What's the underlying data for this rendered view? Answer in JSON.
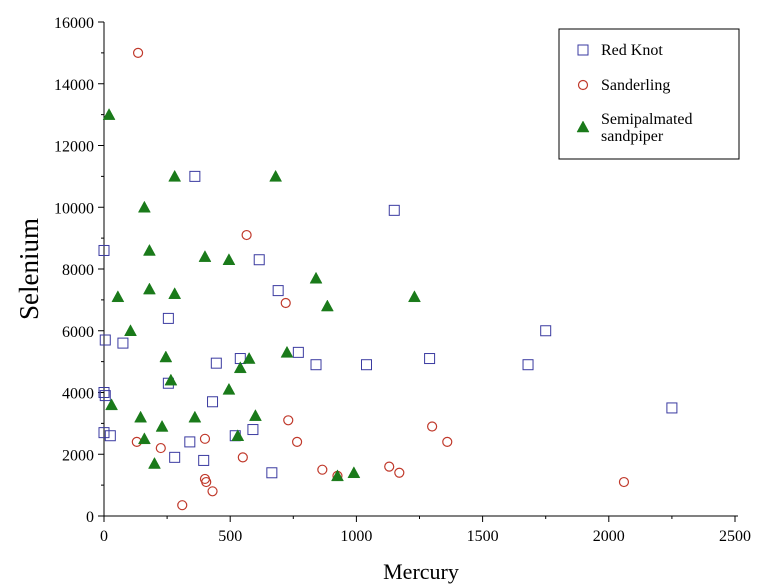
{
  "chart_data": {
    "type": "scatter",
    "xlabel": "Mercury",
    "ylabel": "Selenium",
    "xlim": [
      0,
      2500
    ],
    "ylim": [
      0,
      16000
    ],
    "xticks": [
      "0",
      "500",
      "1000",
      "1500",
      "2000",
      "2500"
    ],
    "yticks": [
      "0",
      "2000",
      "4000",
      "6000",
      "8000",
      "10000",
      "12000",
      "14000",
      "16000"
    ],
    "grid": false,
    "legend": "top-right",
    "series": [
      {
        "name": "Red Knot",
        "marker": "square",
        "color": "#3a3aa0",
        "points": [
          [
            0,
            8600
          ],
          [
            5,
            5700
          ],
          [
            0,
            4000
          ],
          [
            5,
            3900
          ],
          [
            0,
            2700
          ],
          [
            25,
            2600
          ],
          [
            75,
            5600
          ],
          [
            255,
            6400
          ],
          [
            255,
            4300
          ],
          [
            280,
            1900
          ],
          [
            340,
            2400
          ],
          [
            360,
            11000
          ],
          [
            395,
            1800
          ],
          [
            430,
            3700
          ],
          [
            445,
            4950
          ],
          [
            520,
            2600
          ],
          [
            540,
            5100
          ],
          [
            590,
            2800
          ],
          [
            615,
            8300
          ],
          [
            665,
            1400
          ],
          [
            690,
            7300
          ],
          [
            770,
            5300
          ],
          [
            840,
            4900
          ],
          [
            1040,
            4900
          ],
          [
            1150,
            9900
          ],
          [
            1290,
            5100
          ],
          [
            1680,
            4900
          ],
          [
            1750,
            6000
          ],
          [
            2250,
            3500
          ]
        ]
      },
      {
        "name": "Sanderling",
        "marker": "circle",
        "color": "#c0392b",
        "points": [
          [
            135,
            15000
          ],
          [
            130,
            2400
          ],
          [
            225,
            2200
          ],
          [
            310,
            350
          ],
          [
            400,
            2500
          ],
          [
            400,
            1200
          ],
          [
            405,
            1100
          ],
          [
            430,
            800
          ],
          [
            550,
            1900
          ],
          [
            565,
            9100
          ],
          [
            720,
            6900
          ],
          [
            730,
            3100
          ],
          [
            765,
            2400
          ],
          [
            865,
            1500
          ],
          [
            925,
            1300
          ],
          [
            1130,
            1600
          ],
          [
            1170,
            1400
          ],
          [
            1300,
            2900
          ],
          [
            1360,
            2400
          ],
          [
            2060,
            1100
          ]
        ]
      },
      {
        "name": "Semipalmated sandpiper",
        "legend_lines": [
          "Semipalmated",
          " sandpiper"
        ],
        "marker": "triangle",
        "color": "#1a7a1a",
        "points": [
          [
            20,
            13000
          ],
          [
            30,
            3600
          ],
          [
            55,
            7100
          ],
          [
            105,
            6000
          ],
          [
            145,
            3200
          ],
          [
            160,
            10000
          ],
          [
            160,
            2500
          ],
          [
            180,
            8600
          ],
          [
            180,
            7350
          ],
          [
            200,
            1700
          ],
          [
            230,
            2900
          ],
          [
            245,
            5150
          ],
          [
            265,
            4400
          ],
          [
            280,
            11000
          ],
          [
            280,
            7200
          ],
          [
            360,
            3200
          ],
          [
            400,
            8400
          ],
          [
            495,
            8300
          ],
          [
            495,
            4100
          ],
          [
            530,
            2600
          ],
          [
            540,
            4800
          ],
          [
            575,
            5100
          ],
          [
            600,
            3250
          ],
          [
            680,
            11000
          ],
          [
            725,
            5300
          ],
          [
            840,
            7700
          ],
          [
            885,
            6800
          ],
          [
            925,
            1300
          ],
          [
            990,
            1400
          ],
          [
            1230,
            7100
          ]
        ]
      }
    ]
  }
}
